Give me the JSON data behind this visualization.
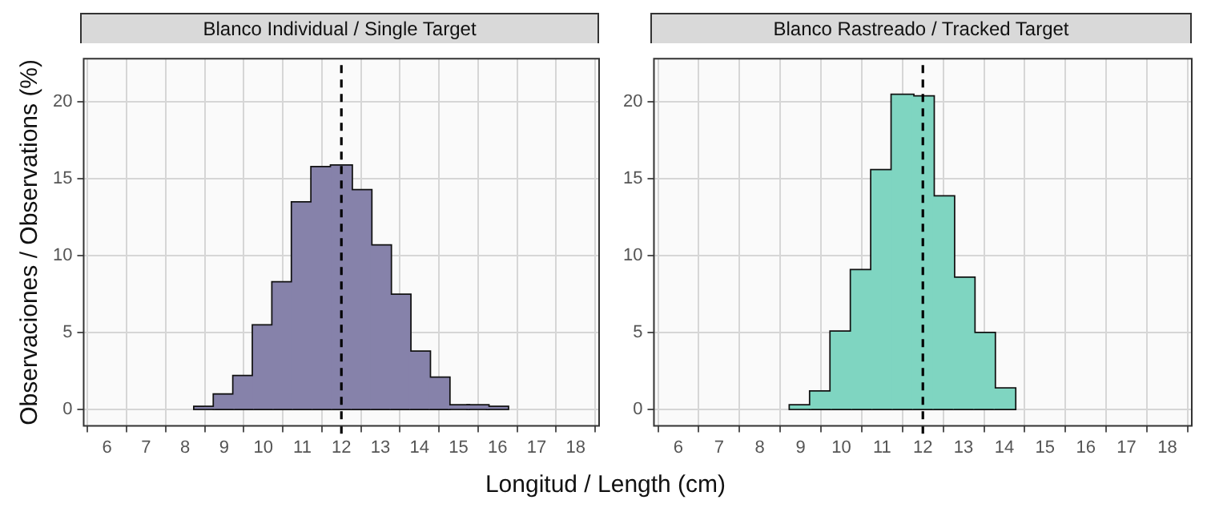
{
  "chart_data": [
    {
      "type": "histogram",
      "title": "Blanco Individual / Single Target",
      "xlabel": "Longitud / Length (cm)",
      "ylabel": "Observaciones / Observations (%)",
      "bins": [
        8.25,
        8.75,
        9.25,
        9.75,
        10.25,
        10.75,
        11.25,
        11.75,
        12.25,
        12.75,
        13.25,
        13.75,
        14.25,
        14.75,
        15.25,
        15.75,
        16.25
      ],
      "values": [
        0.1,
        0.9,
        2.1,
        5.4,
        8.2,
        13.4,
        15.7,
        15.8,
        14.2,
        10.6,
        7.4,
        3.7,
        2.0,
        0.2,
        0.2,
        0.1
      ],
      "color": "#8682aa",
      "xlim": [
        5.4,
        18.6
      ],
      "xticks": [
        6,
        7,
        8,
        9,
        10,
        11,
        12,
        13,
        14,
        15,
        16,
        17,
        18
      ],
      "ylim": [
        -1.1,
        22.8
      ],
      "yticks": [
        0,
        5,
        10,
        15,
        20
      ],
      "grid": true,
      "ref_lines": [
        {
          "axis": "x",
          "value": 12,
          "line_style": "dashed",
          "color": "#000000"
        }
      ]
    },
    {
      "type": "histogram",
      "title": "Blanco Rastreado / Tracked Target",
      "bins": [
        8.75,
        9.25,
        9.75,
        10.25,
        10.75,
        11.25,
        11.75,
        12.25,
        12.75,
        13.25,
        13.75,
        14.25
      ],
      "values": [
        0.2,
        1.1,
        5.0,
        9.0,
        15.5,
        20.4,
        20.3,
        13.8,
        8.5,
        4.9,
        1.3
      ],
      "color": "#7fd5c1",
      "xlim": [
        5.4,
        18.6
      ],
      "xticks": [
        6,
        7,
        8,
        9,
        10,
        11,
        12,
        13,
        14,
        15,
        16,
        17,
        18
      ],
      "ylim": [
        -1.1,
        22.8
      ],
      "yticks": [
        0,
        5,
        10,
        15,
        20
      ],
      "grid": true,
      "ref_lines": [
        {
          "axis": "x",
          "value": 12,
          "line_style": "dashed",
          "color": "#000000"
        }
      ]
    }
  ]
}
